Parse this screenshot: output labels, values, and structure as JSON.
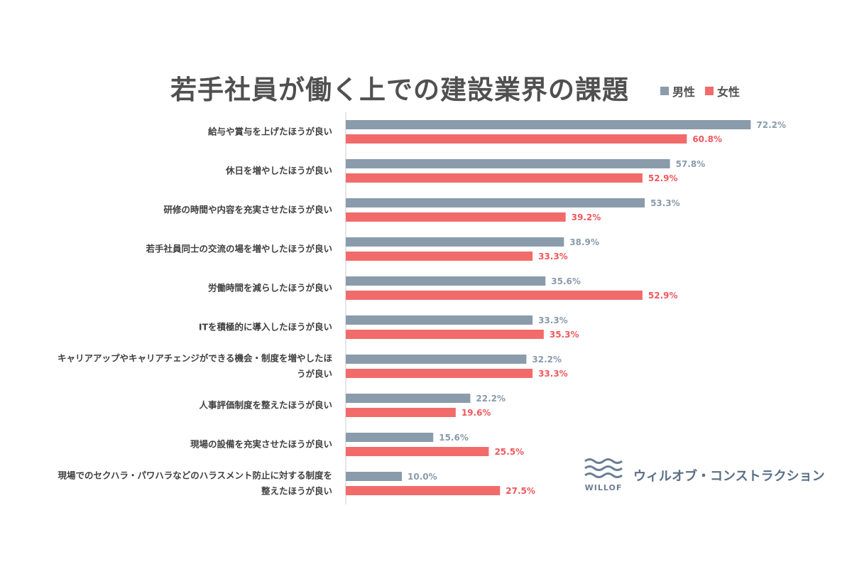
{
  "colors": {
    "male": "#8a9bab",
    "female": "#f26b6b",
    "axis": "#cccccc"
  },
  "legend": {
    "male": "男性",
    "female": "女性"
  },
  "brand": {
    "logo_text": "WILLOF",
    "name": "ウィルオブ・コンストラクション",
    "icon": "wave-logo-icon"
  },
  "chart_data": {
    "type": "bar",
    "orientation": "horizontal",
    "title": "若手社員が働く上での建設業界の課題",
    "xlim": [
      0,
      75
    ],
    "legend_position": "top-right",
    "grid": false,
    "categories": [
      [
        "給与や賞与を上げたほうが良い"
      ],
      [
        "休日を増やしたほうが良い"
      ],
      [
        "研修の時間や内容を充実させたほうが良い"
      ],
      [
        "若手社員同士の交流の場を増やしたほうが良い"
      ],
      [
        "労働時間を減らしたほうが良い"
      ],
      [
        "ITを積極的に導入したほうが良い"
      ],
      [
        "キャリアアップやキャリアチェンジができる機会・制度を増やしたほ",
        "うが良い"
      ],
      [
        "人事評価制度を整えたほうが良い"
      ],
      [
        "現場の設備を充実させたほうが良い"
      ],
      [
        "現場でのセクハラ・パワハラなどのハラスメント防止に対する制度を",
        "整えたほうが良い"
      ]
    ],
    "series": [
      {
        "name": "男性",
        "values": [
          72.2,
          57.8,
          53.3,
          38.9,
          35.6,
          33.3,
          32.2,
          22.2,
          15.6,
          10.0
        ],
        "labels": [
          "72.2%",
          "57.8%",
          "53.3%",
          "38.9%",
          "35.6%",
          "33.3%",
          "32.2%",
          "22.2%",
          "15.6%",
          "10.0%"
        ]
      },
      {
        "name": "女性",
        "values": [
          60.8,
          52.9,
          39.2,
          33.3,
          52.9,
          35.3,
          33.3,
          19.6,
          25.5,
          27.5
        ],
        "labels": [
          "60.8%",
          "52.9%",
          "39.2%",
          "33.3%",
          "52.9%",
          "35.3%",
          "33.3%",
          "19.6%",
          "25.5%",
          "27.5%"
        ]
      }
    ],
    "emphasized_category": 2
  }
}
